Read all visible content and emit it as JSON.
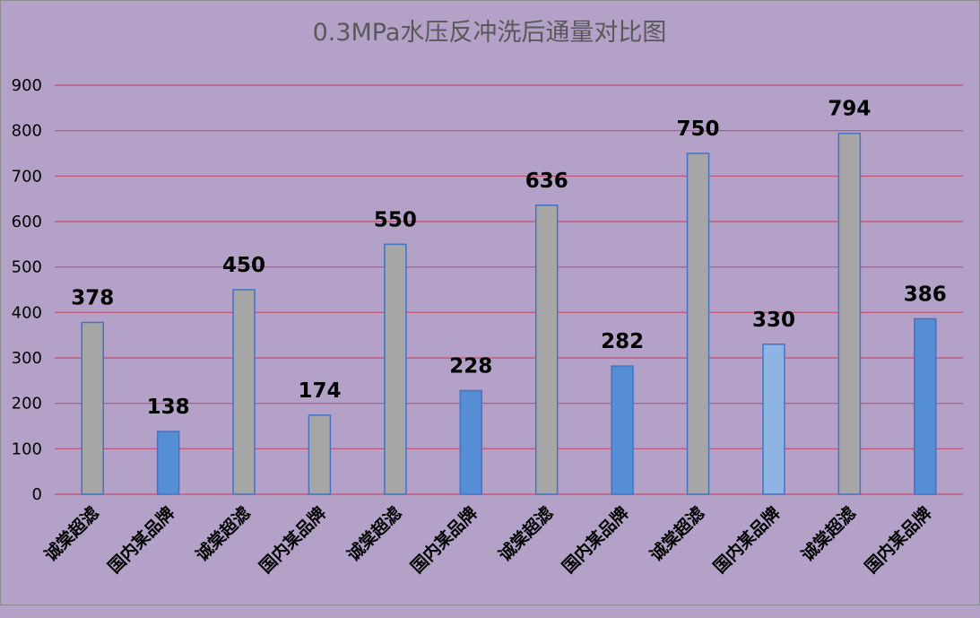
{
  "chart_data": {
    "type": "bar",
    "title": "0.3MPa水压反冲洗后通量对比图",
    "xlabel": "",
    "ylabel": "",
    "ylim": [
      0,
      900
    ],
    "yticks": [
      0,
      100,
      200,
      300,
      400,
      500,
      600,
      700,
      800,
      900
    ],
    "grid": true,
    "legend": "none",
    "categories": [
      "诚棠超滤",
      "国内某品牌",
      "诚棠超滤",
      "国内某品牌",
      "诚棠超滤",
      "国内某品牌",
      "诚棠超滤",
      "国内某品牌",
      "诚棠超滤",
      "国内某品牌",
      "诚棠超滤",
      "国内某品牌"
    ],
    "values": [
      378,
      138,
      450,
      174,
      550,
      228,
      636,
      282,
      750,
      330,
      794,
      386
    ],
    "bar_colors": [
      "#a6a6a6",
      "#558ed5",
      "#a6a6a6",
      "#a6a6a6",
      "#a6a6a6",
      "#558ed5",
      "#a6a6a6",
      "#558ed5",
      "#a6a6a6",
      "#8eb4e3",
      "#a6a6a6",
      "#558ed5"
    ],
    "colors": {
      "background": "#b3a1c8",
      "gridline": "#c0506e",
      "bar_border": "#4472c4",
      "title": "#595959"
    }
  }
}
